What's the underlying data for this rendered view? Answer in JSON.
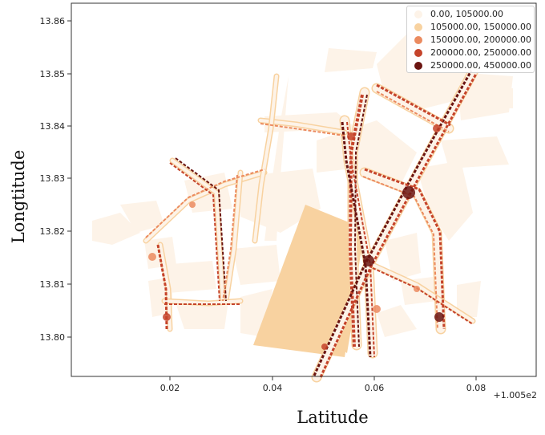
{
  "chart": {
    "xlabel": "Latitude",
    "ylabel": "Longtitude",
    "x_offset_label": "+1.005e2",
    "x_ticks": [
      "0.02",
      "0.04",
      "0.06",
      "0.08"
    ],
    "y_ticks": [
      "13.80",
      "13.81",
      "13.82",
      "13.83",
      "13.84",
      "13.85",
      "13.86"
    ],
    "legend_position": "top-right"
  },
  "legend": {
    "items": [
      {
        "label": "0.00, 105000.00",
        "color": "#fdf3e8"
      },
      {
        "label": "105000.00, 150000.00",
        "color": "#f8d2a0"
      },
      {
        "label": "150000.00, 200000.00",
        "color": "#eb8a5f"
      },
      {
        "label": "200000.00, 250000.00",
        "color": "#c5432a"
      },
      {
        "label": "250000.00, 450000.00",
        "color": "#6b1410"
      }
    ]
  },
  "chart_data": {
    "type": "choropleth",
    "x_range": [
      100.501,
      100.589
    ],
    "y_range": [
      13.7945,
      13.8648
    ],
    "grid": false,
    "classes": [
      {
        "range": [
          0,
          105000
        ],
        "color": "#fdf3e8"
      },
      {
        "range": [
          105000,
          150000
        ],
        "color": "#f8d2a0"
      },
      {
        "range": [
          150000,
          200000
        ],
        "color": "#eb8a5f"
      },
      {
        "range": [
          200000,
          250000
        ],
        "color": "#c5432a"
      },
      {
        "range": [
          250000,
          450000
        ],
        "color": "#6b1410"
      }
    ]
  }
}
